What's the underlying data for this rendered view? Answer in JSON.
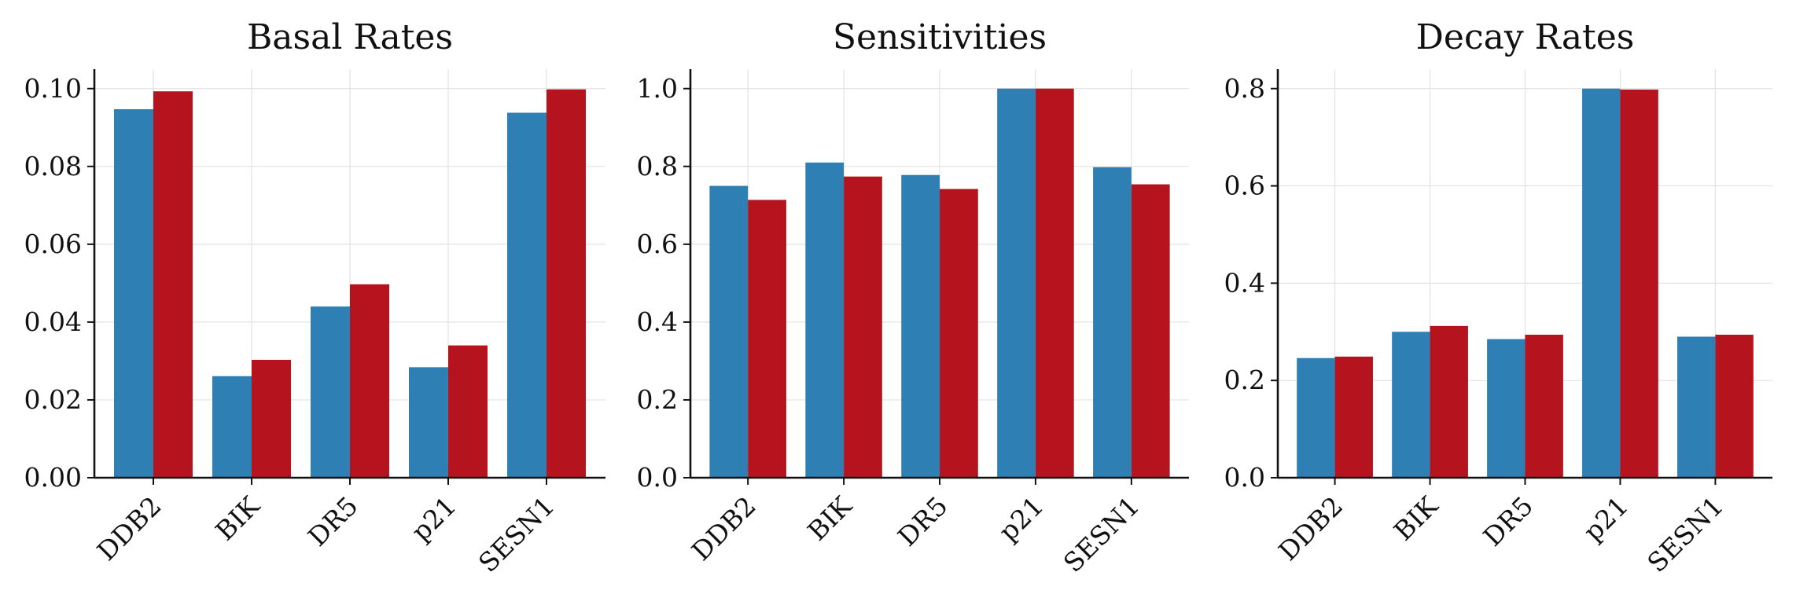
{
  "chart_data": [
    {
      "type": "bar",
      "title": "Basal Rates",
      "categories": [
        "DDB2",
        "BIK",
        "DR5",
        "p21",
        "SESN1"
      ],
      "series": [
        {
          "values": [
            0.0947,
            0.0261,
            0.044,
            0.0284,
            0.0938
          ],
          "color": "#2e80b4"
        },
        {
          "values": [
            0.0993,
            0.0303,
            0.0497,
            0.034,
            0.0998
          ],
          "color": "#b5141f"
        }
      ],
      "ylim": [
        0,
        0.105
      ],
      "yticks": [
        0,
        0.02,
        0.04,
        0.06,
        0.08,
        0.1
      ],
      "ytick_labels": [
        "0.00",
        "0.02",
        "0.04",
        "0.06",
        "0.08",
        "0.10"
      ],
      "grid": true
    },
    {
      "type": "bar",
      "title": "Sensitivities",
      "categories": [
        "DDB2",
        "BIK",
        "DR5",
        "p21",
        "SESN1"
      ],
      "series": [
        {
          "values": [
            0.75,
            0.81,
            0.778,
            1.0,
            0.798
          ],
          "color": "#2e80b4"
        },
        {
          "values": [
            0.714,
            0.774,
            0.742,
            1.0,
            0.754
          ],
          "color": "#b5141f"
        }
      ],
      "ylim": [
        0,
        1.05
      ],
      "yticks": [
        0,
        0.2,
        0.4,
        0.6,
        0.8,
        1.0
      ],
      "ytick_labels": [
        "0.0",
        "0.2",
        "0.4",
        "0.6",
        "0.8",
        "1.0"
      ],
      "grid": true
    },
    {
      "type": "bar",
      "title": "Decay Rates",
      "categories": [
        "DDB2",
        "BIK",
        "DR5",
        "p21",
        "SESN1"
      ],
      "series": [
        {
          "values": [
            0.246,
            0.3,
            0.285,
            0.8,
            0.29
          ],
          "color": "#2e80b4"
        },
        {
          "values": [
            0.249,
            0.312,
            0.294,
            0.798,
            0.294
          ],
          "color": "#b5141f"
        }
      ],
      "ylim": [
        0,
        0.84
      ],
      "yticks": [
        0,
        0.2,
        0.4,
        0.6,
        0.8
      ],
      "ytick_labels": [
        "0.0",
        "0.2",
        "0.4",
        "0.6",
        "0.8"
      ],
      "grid": true
    }
  ]
}
